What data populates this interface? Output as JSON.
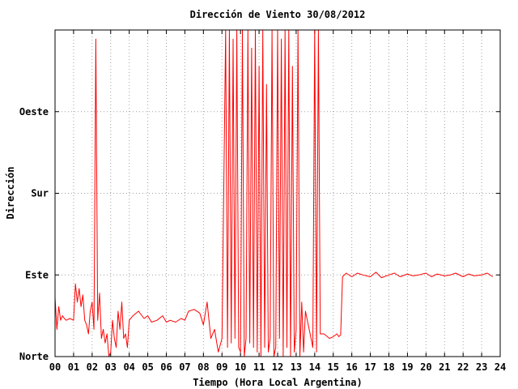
{
  "chart_data": {
    "type": "line",
    "title": "Dirección de Viento 30/08/2012",
    "xlabel": "Tiempo (Hora Local Argentina)",
    "ylabel": "Dirección",
    "xlim": [
      0,
      24
    ],
    "ylim": [
      0,
      360
    ],
    "x_ticks": [
      0,
      1,
      2,
      3,
      4,
      5,
      6,
      7,
      8,
      9,
      10,
      11,
      12,
      13,
      14,
      15,
      16,
      17,
      18,
      19,
      20,
      21,
      22,
      23,
      24
    ],
    "x_tick_labels": [
      "00",
      "01",
      "02",
      "03",
      "04",
      "05",
      "06",
      "07",
      "08",
      "09",
      "10",
      "11",
      "12",
      "13",
      "14",
      "15",
      "16",
      "17",
      "18",
      "19",
      "20",
      "21",
      "22",
      "23",
      "24"
    ],
    "y_ticks": [
      0,
      90,
      180,
      270
    ],
    "y_tick_labels": [
      "Norte",
      "Este",
      "Sur",
      "Oeste"
    ],
    "grid": true,
    "line_color": "#ff0000",
    "series": [
      {
        "x": [
          0.0,
          0.1,
          0.2,
          0.3,
          0.4,
          0.5,
          0.6,
          0.8,
          1.0,
          1.1,
          1.2,
          1.3,
          1.4,
          1.5,
          1.6,
          1.7,
          1.8,
          1.9,
          2.0,
          2.1,
          2.2,
          2.3,
          2.4,
          2.5,
          2.6,
          2.7,
          2.8,
          2.9,
          3.0,
          3.1,
          3.2,
          3.3,
          3.4,
          3.5,
          3.6,
          3.7,
          3.8,
          3.9,
          4.0,
          4.2,
          4.5,
          4.8,
          5.0,
          5.2,
          5.5,
          5.8,
          6.0,
          6.2,
          6.5,
          6.8,
          7.0,
          7.2,
          7.5,
          7.8,
          8.0,
          8.2,
          8.4,
          8.6,
          8.8,
          9.0,
          9.2,
          9.3,
          9.4,
          9.5,
          9.6,
          9.7,
          9.8,
          9.9,
          10.0,
          10.1,
          10.2,
          10.3,
          10.4,
          10.5,
          10.6,
          10.7,
          10.8,
          10.9,
          11.0,
          11.1,
          11.2,
          11.3,
          11.4,
          11.5,
          11.6,
          11.7,
          11.8,
          11.9,
          12.0,
          12.1,
          12.2,
          12.3,
          12.4,
          12.5,
          12.6,
          12.7,
          12.8,
          12.9,
          13.0,
          13.1,
          13.2,
          13.3,
          13.4,
          13.5,
          13.6,
          13.7,
          13.8,
          13.9,
          14.0,
          14.1,
          14.2,
          14.3,
          14.5,
          14.8,
          15.0,
          15.2,
          15.3,
          15.4,
          15.5,
          15.7,
          16.0,
          16.3,
          16.6,
          17.0,
          17.3,
          17.6,
          18.0,
          18.3,
          18.6,
          19.0,
          19.3,
          19.6,
          20.0,
          20.3,
          20.6,
          21.0,
          21.3,
          21.6,
          22.0,
          22.3,
          22.6,
          23.0,
          23.3,
          23.6
        ],
        "y": [
          65,
          30,
          55,
          40,
          45,
          42,
          40,
          42,
          40,
          80,
          60,
          75,
          55,
          68,
          40,
          35,
          25,
          50,
          60,
          30,
          350,
          40,
          70,
          20,
          30,
          15,
          25,
          0,
          5,
          40,
          20,
          10,
          50,
          30,
          60,
          20,
          25,
          10,
          40,
          45,
          50,
          42,
          45,
          38,
          40,
          45,
          38,
          40,
          38,
          42,
          40,
          50,
          52,
          48,
          35,
          60,
          20,
          30,
          5,
          20,
          360,
          10,
          360,
          15,
          350,
          20,
          360,
          10,
          5,
          360,
          0,
          20,
          360,
          15,
          340,
          10,
          360,
          5,
          320,
          0,
          360,
          10,
          300,
          5,
          20,
          360,
          0,
          10,
          360,
          20,
          350,
          0,
          360,
          10,
          360,
          0,
          320,
          5,
          30,
          360,
          0,
          60,
          5,
          50,
          40,
          30,
          20,
          10,
          360,
          5,
          360,
          25,
          25,
          20,
          22,
          25,
          22,
          24,
          88,
          92,
          88,
          92,
          90,
          88,
          93,
          87,
          90,
          92,
          88,
          91,
          89,
          90,
          92,
          88,
          91,
          89,
          90,
          92,
          88,
          91,
          89,
          90,
          92,
          88
        ]
      }
    ]
  }
}
